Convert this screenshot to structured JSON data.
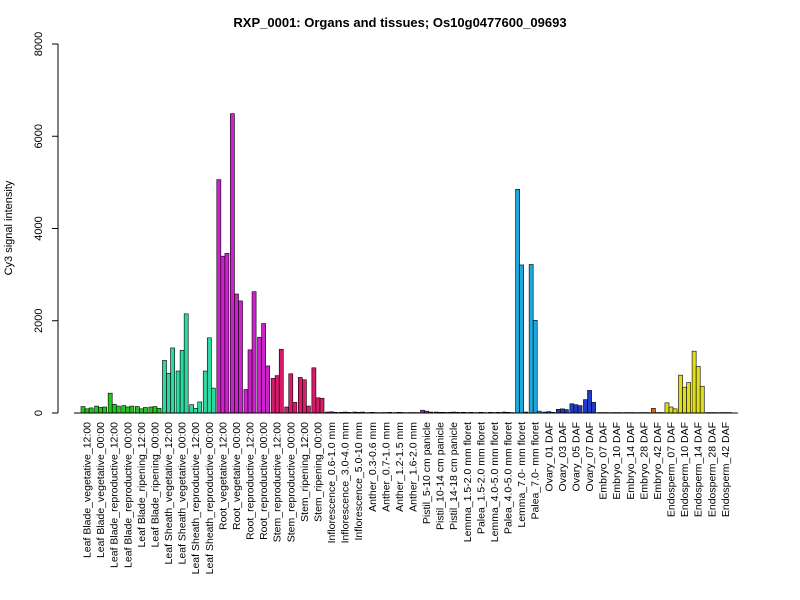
{
  "chart_data": {
    "type": "bar",
    "title": "RXP_0001: Organs and tissues; Os10g0477600_09693",
    "xlabel": "",
    "ylabel": "Cy3 signal intensity",
    "ylim": [
      0,
      8000
    ],
    "yticks": [
      0,
      2000,
      4000,
      6000,
      8000
    ],
    "grid": false,
    "groups": [
      {
        "label": "Leaf Blade_vegetative_12:00",
        "color": "#22c81e",
        "values": [
          140,
          90,
          110
        ]
      },
      {
        "label": "Leaf Blade_vegetative_00:00",
        "color": "#22c81e",
        "values": [
          150,
          120,
          130
        ]
      },
      {
        "label": "Leaf Blade_reproductive_12:00",
        "color": "#22c81e",
        "values": [
          430,
          190,
          150
        ]
      },
      {
        "label": "Leaf Blade_reproductive_00:00",
        "color": "#22c81e",
        "values": [
          160,
          130,
          150
        ]
      },
      {
        "label": "Leaf Blade_ripening_12:00",
        "color": "#22c81e",
        "values": [
          140,
          90,
          120
        ]
      },
      {
        "label": "Leaf Blade_ripening_00:00",
        "color": "#22c81e",
        "values": [
          130,
          140,
          100
        ]
      },
      {
        "label": "Leaf Sheath_vegetative_12:00",
        "color": "#2ed9a0",
        "values": [
          1140,
          860,
          1410
        ]
      },
      {
        "label": "Leaf Sheath_vegetative_00:00",
        "color": "#2ed9a0",
        "values": [
          910,
          1360,
          2150
        ]
      },
      {
        "label": "Leaf Sheath_reproductive_12:00",
        "color": "#2ed9a0",
        "values": [
          180,
          100,
          240
        ]
      },
      {
        "label": "Leaf Sheath_reproductive_00:00",
        "color": "#2ed9a0",
        "values": [
          910,
          1630,
          540
        ]
      },
      {
        "label": "Root_vegetative_12:00",
        "color": "#cc22cc",
        "values": [
          5060,
          3400,
          3460
        ]
      },
      {
        "label": "Root_vegetative_00:00",
        "color": "#cc22cc",
        "values": [
          6490,
          2580,
          2430
        ]
      },
      {
        "label": "Root_reproductive_12:00",
        "color": "#cc22cc",
        "values": [
          510,
          1370,
          2630
        ]
      },
      {
        "label": "Root_reproductive_00:00",
        "color": "#cc22cc",
        "values": [
          1640,
          1940,
          1020
        ]
      },
      {
        "label": "Stem_reproductive_12:00",
        "color": "#d81b6a",
        "values": [
          750,
          810,
          1380
        ]
      },
      {
        "label": "Stem_reproductive_00:00",
        "color": "#d81b6a",
        "values": [
          130,
          850,
          230
        ]
      },
      {
        "label": "Stem_ripening_12:00",
        "color": "#d81b6a",
        "values": [
          770,
          720,
          150
        ]
      },
      {
        "label": "Stem_ripening_00:00",
        "color": "#d81b6a",
        "values": [
          980,
          330,
          320
        ]
      },
      {
        "label": "Inflorescence_0.6-1.0 mm",
        "color": "#8a2be2",
        "values": [
          20,
          25,
          15
        ]
      },
      {
        "label": "Inflorescence_3.0-4.0 mm",
        "color": "#8a2be2",
        "values": [
          15,
          20,
          15
        ]
      },
      {
        "label": "Inflorescence_5.0-10 mm",
        "color": "#8a2be2",
        "values": [
          20,
          15,
          20
        ]
      },
      {
        "label": "Anther_0.3-0.6 mm",
        "color": "#8a2be2",
        "values": [
          10,
          15,
          10
        ]
      },
      {
        "label": "Anther_0.7-1.0 mm",
        "color": "#8a2be2",
        "values": [
          10,
          10,
          15
        ]
      },
      {
        "label": "Anther_1.2-1.5 mm",
        "color": "#8a2be2",
        "values": [
          10,
          15,
          10
        ]
      },
      {
        "label": "Anther_1.6-2.0 mm",
        "color": "#8a2be2",
        "values": [
          10,
          10,
          10
        ]
      },
      {
        "label": "Pistil_5-10 cm panicle",
        "color": "#8a2be2",
        "values": [
          60,
          40,
          20
        ]
      },
      {
        "label": "Pistil_10-14 cm panicle",
        "color": "#8a2be2",
        "values": [
          20,
          15,
          15
        ]
      },
      {
        "label": "Pistil_14-18 cm panicle",
        "color": "#8a2be2",
        "values": [
          15,
          20,
          15
        ]
      },
      {
        "label": "Lemma_1.5-2.0 mm floret",
        "color": "#8a2be2",
        "values": [
          15,
          10,
          15
        ]
      },
      {
        "label": "Palea_1.5-2.0 mm floret",
        "color": "#8a2be2",
        "values": [
          10,
          15,
          10
        ]
      },
      {
        "label": "Lemma_4.0-5.0 mm floret",
        "color": "#8a2be2",
        "values": [
          15,
          10,
          15
        ]
      },
      {
        "label": "Palea_4.0-5.0 mm floret",
        "color": "#8a2be2",
        "values": [
          20,
          15,
          10
        ]
      },
      {
        "label": "Lemma_7.0- mm floret",
        "color": "#1ea8dc",
        "values": [
          4850,
          3210,
          20
        ]
      },
      {
        "label": "Palea_7.0- mm floret",
        "color": "#1ea8dc",
        "values": [
          3220,
          2010,
          40
        ]
      },
      {
        "label": "Ovary_01 DAF",
        "color": "#1e3cc8",
        "values": [
          20,
          30,
          15
        ]
      },
      {
        "label": "Ovary_03 DAF",
        "color": "#1e3cc8",
        "values": [
          80,
          90,
          75
        ]
      },
      {
        "label": "Ovary_05 DAF",
        "color": "#1e3cc8",
        "values": [
          200,
          180,
          160
        ]
      },
      {
        "label": "Ovary_07 DAF",
        "color": "#1e3cc8",
        "values": [
          290,
          490,
          230
        ]
      },
      {
        "label": "Embryo_07 DAF",
        "color": "#d2691e",
        "values": [
          10,
          10,
          10
        ]
      },
      {
        "label": "Embryo_10 DAF",
        "color": "#d2691e",
        "values": [
          10,
          10,
          10
        ]
      },
      {
        "label": "Embryo_14 DAF",
        "color": "#d2691e",
        "values": [
          10,
          10,
          10
        ]
      },
      {
        "label": "Embryo_28 DAF",
        "color": "#d2691e",
        "values": [
          10,
          10,
          10
        ]
      },
      {
        "label": "Embryo_42 DAF",
        "color": "#d2691e",
        "values": [
          100,
          10,
          10
        ]
      },
      {
        "label": "Endosperm_07 DAF",
        "color": "#dede1e",
        "values": [
          220,
          130,
          90
        ]
      },
      {
        "label": "Endosperm_10 DAF",
        "color": "#dede1e",
        "values": [
          820,
          560,
          660
        ]
      },
      {
        "label": "Endosperm_14 DAF",
        "color": "#dede1e",
        "values": [
          1340,
          1010,
          580
        ]
      },
      {
        "label": "Endosperm_28 DAF",
        "color": "#dede1e",
        "values": [
          10,
          10,
          10
        ]
      },
      {
        "label": "Endosperm_42 DAF",
        "color": "#dede1e",
        "values": [
          10,
          10,
          10
        ]
      }
    ]
  }
}
